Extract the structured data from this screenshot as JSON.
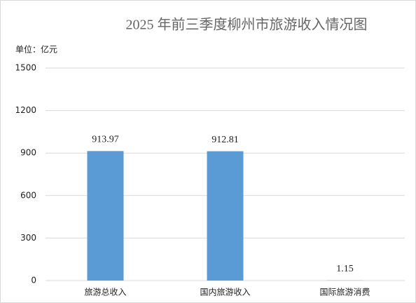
{
  "chart_data": {
    "type": "bar",
    "title": "2025 年前三季度柳州市旅游收入情况图",
    "unit_label": "单位：亿元",
    "categories": [
      "旅游总收入",
      "国内旅游收入",
      "国际旅游消费"
    ],
    "values": [
      913.97,
      912.81,
      1.15
    ],
    "color": "#5b9bd5",
    "ylim": [
      0,
      1500
    ],
    "yticks": [
      0,
      300,
      600,
      900,
      1200,
      1500
    ],
    "grid": true
  }
}
